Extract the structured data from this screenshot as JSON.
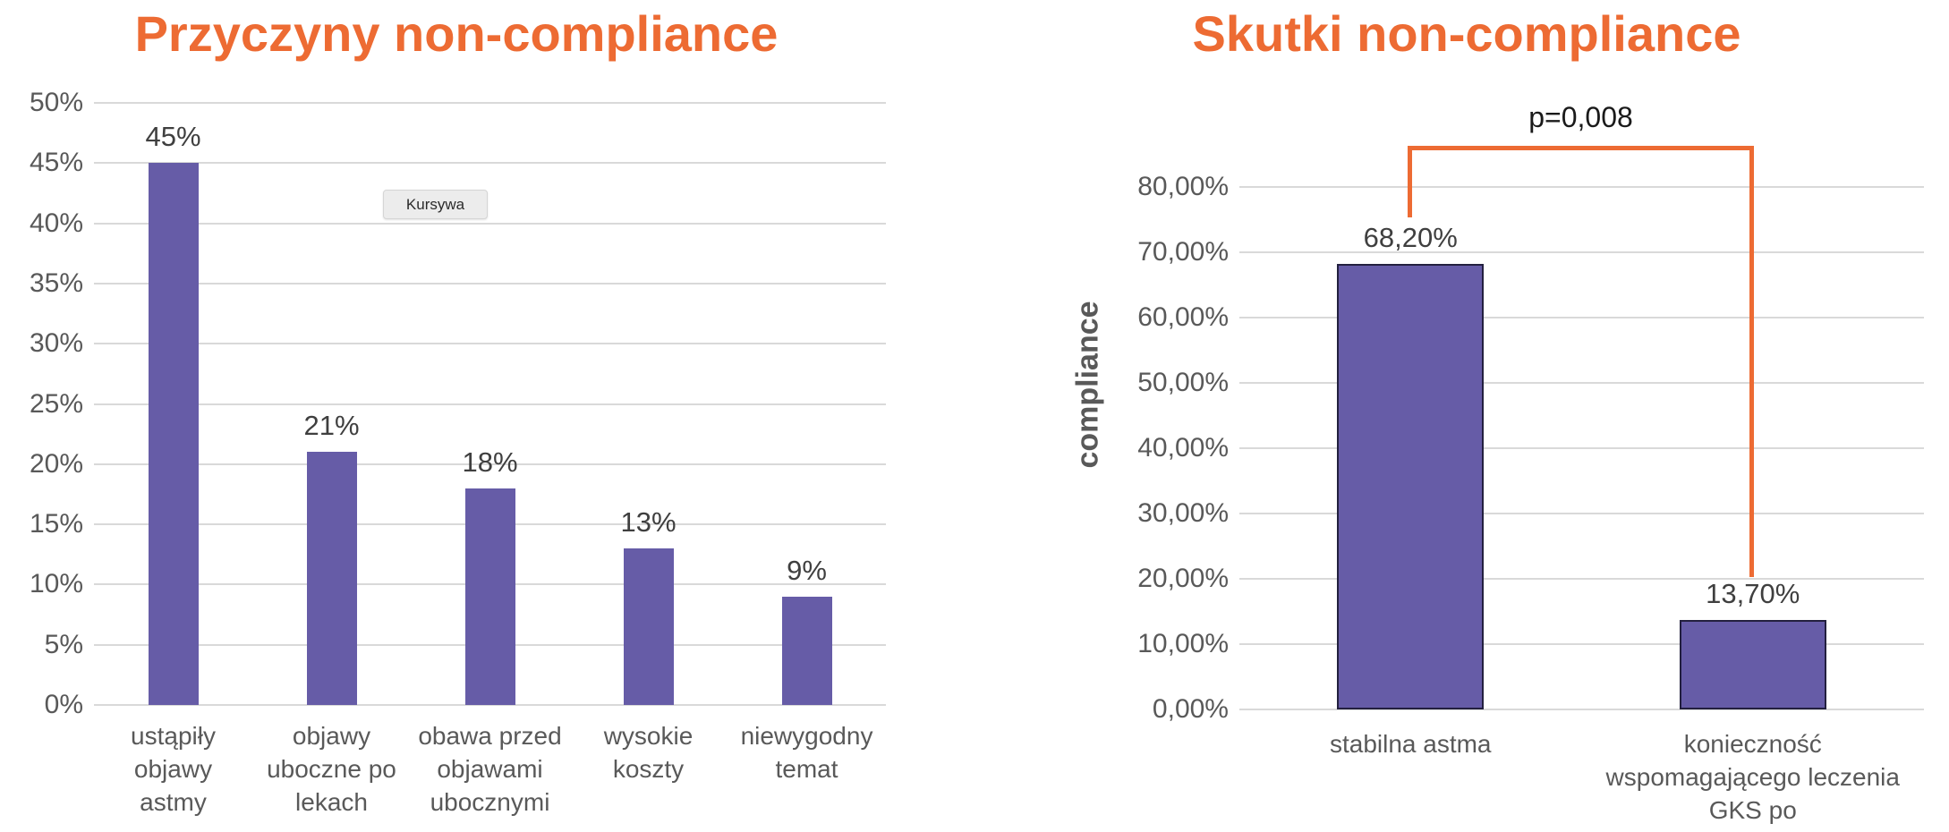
{
  "page": {
    "background": "#FFFFFF"
  },
  "colors": {
    "accent_orange": "#ED6B33",
    "bar_fill": "#665CA7",
    "bar_border": "#23203F",
    "gridline": "#D9D9D9",
    "tick_text": "#595959",
    "value_text": "#3F3F3F",
    "annotation_text": "#1A1A1A",
    "tooltip_bg": "#ECECEC",
    "tooltip_border": "#D5D5D5"
  },
  "tooltip": {
    "label": "Kursywa"
  },
  "chart_data": [
    {
      "type": "bar",
      "title": "Przyczyny non-compliance",
      "categories": [
        "ustąpiły objawy astmy",
        "objawy uboczne po lekach",
        "obawa przed objawami ubocznymi",
        "wysokie koszty",
        "niewygodny temat"
      ],
      "category_lines": [
        [
          "ustąpiły",
          "objawy",
          "astmy"
        ],
        [
          "objawy",
          "uboczne po",
          "lekach"
        ],
        [
          "obawa przed",
          "objawami",
          "ubocznymi"
        ],
        [
          "wysokie",
          "koszty"
        ],
        [
          "niewygodny",
          "temat"
        ]
      ],
      "values": [
        45,
        21,
        18,
        13,
        9
      ],
      "value_labels": [
        "45%",
        "21%",
        "18%",
        "13%",
        "9%"
      ],
      "xlabel": "",
      "ylabel": "",
      "ylim": [
        0,
        50
      ],
      "y_tick_step": 5,
      "y_tick_labels": [
        "0%",
        "5%",
        "10%",
        "15%",
        "20%",
        "25%",
        "30%",
        "35%",
        "40%",
        "45%",
        "50%"
      ],
      "grid": true,
      "legend": false
    },
    {
      "type": "bar",
      "title": "Skutki non-compliance",
      "categories": [
        "stabilna astma",
        "konieczność wspomagającego leczenia GKS po"
      ],
      "category_lines": [
        [
          "stabilna astma"
        ],
        [
          "konieczność",
          "wspomagającego leczenia",
          "GKS po"
        ]
      ],
      "values": [
        68.2,
        13.7
      ],
      "value_labels": [
        "68,20%",
        "13,70%"
      ],
      "xlabel": "",
      "ylabel": "compliance",
      "ylim": [
        0,
        80
      ],
      "y_tick_step": 10,
      "y_tick_labels": [
        "0,00%",
        "10,00%",
        "20,00%",
        "30,00%",
        "40,00%",
        "50,00%",
        "60,00%",
        "70,00%",
        "80,00%"
      ],
      "grid": true,
      "legend": false,
      "annotation": {
        "text": "p=0,008",
        "connects": [
          "stabilna astma",
          "konieczność wspomagającego leczenia GKS po"
        ]
      }
    }
  ]
}
